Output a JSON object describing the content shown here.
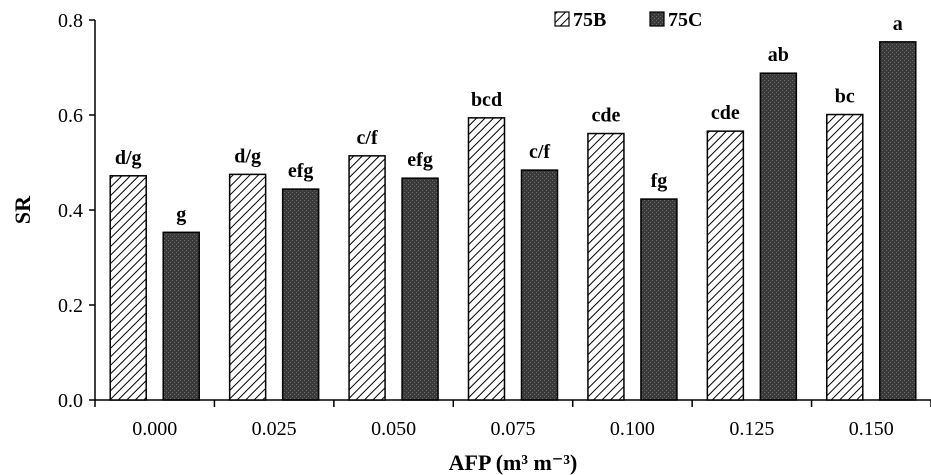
{
  "chart_data": {
    "type": "bar",
    "xlabel": "AFP (m³ m⁻³)",
    "ylabel": "SR",
    "ylim": [
      0,
      0.8
    ],
    "yticks": [
      0.0,
      0.2,
      0.4,
      0.6,
      0.8
    ],
    "ytick_labels": [
      "0.0",
      "0.2",
      "0.4",
      "0.6",
      "0.8"
    ],
    "categories": [
      "0.000",
      "0.025",
      "0.050",
      "0.075",
      "0.100",
      "0.125",
      "0.150"
    ],
    "legend_position": "top-right",
    "series": [
      {
        "name": "75B",
        "pattern": "hatched",
        "color": "#ffffff",
        "values": [
          0.472,
          0.475,
          0.514,
          0.594,
          0.561,
          0.566,
          0.601
        ],
        "labels": [
          "d/g",
          "d/g",
          "c/f",
          "bcd",
          "cde",
          "cde",
          "bc"
        ]
      },
      {
        "name": "75C",
        "pattern": "dark-dotted",
        "color": "#3a3a3a",
        "values": [
          0.353,
          0.444,
          0.467,
          0.484,
          0.423,
          0.688,
          0.754
        ],
        "labels": [
          "g",
          "efg",
          "efg",
          "c/f",
          "fg",
          "ab",
          "a"
        ]
      }
    ]
  }
}
